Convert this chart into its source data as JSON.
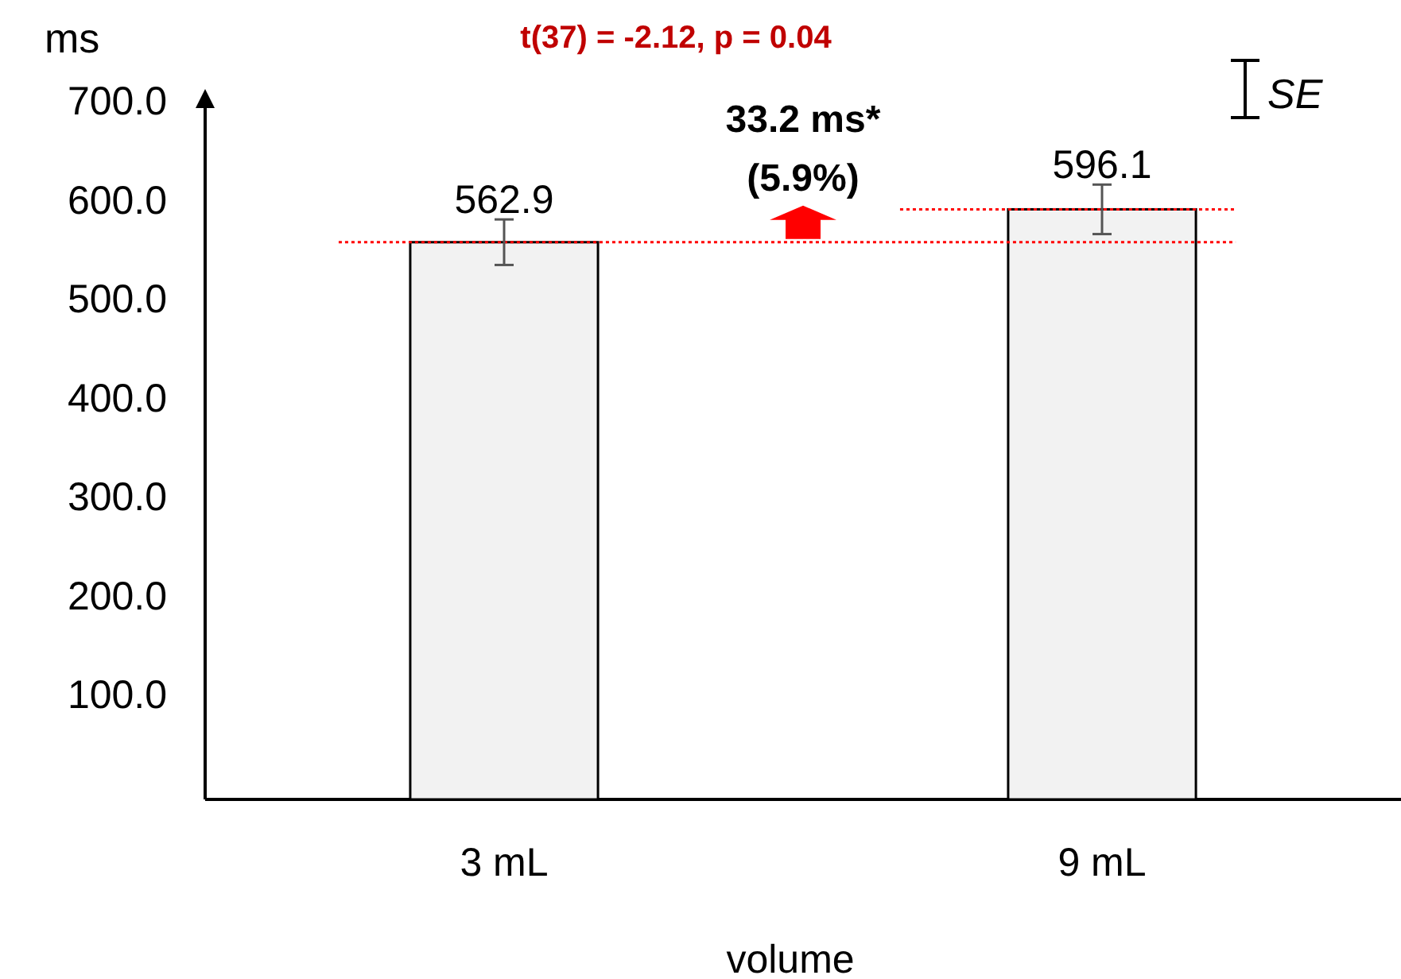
{
  "chart_data": {
    "type": "bar",
    "title": "t(37) = -2.12, p = 0.04",
    "xlabel": "volume",
    "ylabel": "ms",
    "categories": [
      "3 mL",
      "9 mL"
    ],
    "values": [
      562.9,
      596.1
    ],
    "errors": [
      23,
      25
    ],
    "color": "#f2f2f2",
    "data_labels": true,
    "ylim": [
      0,
      700
    ],
    "yticks": [
      {
        "value": 100,
        "label": "100.0"
      },
      {
        "value": 200,
        "label": "200.0"
      },
      {
        "value": 300,
        "label": "300.0"
      },
      {
        "value": 400,
        "label": "400.0"
      },
      {
        "value": 500,
        "label": "500.0"
      },
      {
        "value": 600,
        "label": "600.0"
      },
      {
        "value": 700,
        "label": "700.0"
      }
    ],
    "ref_lines": [
      {
        "axis": "y",
        "value": 562.9,
        "color": "#ff0000",
        "line_style": "dotted"
      },
      {
        "axis": "y",
        "value": 596.1,
        "color": "#ff0000",
        "line_style": "dotted"
      }
    ],
    "annotations": [
      "33.2 ms*",
      "(5.9%)",
      "SE"
    ],
    "grid": false
  }
}
